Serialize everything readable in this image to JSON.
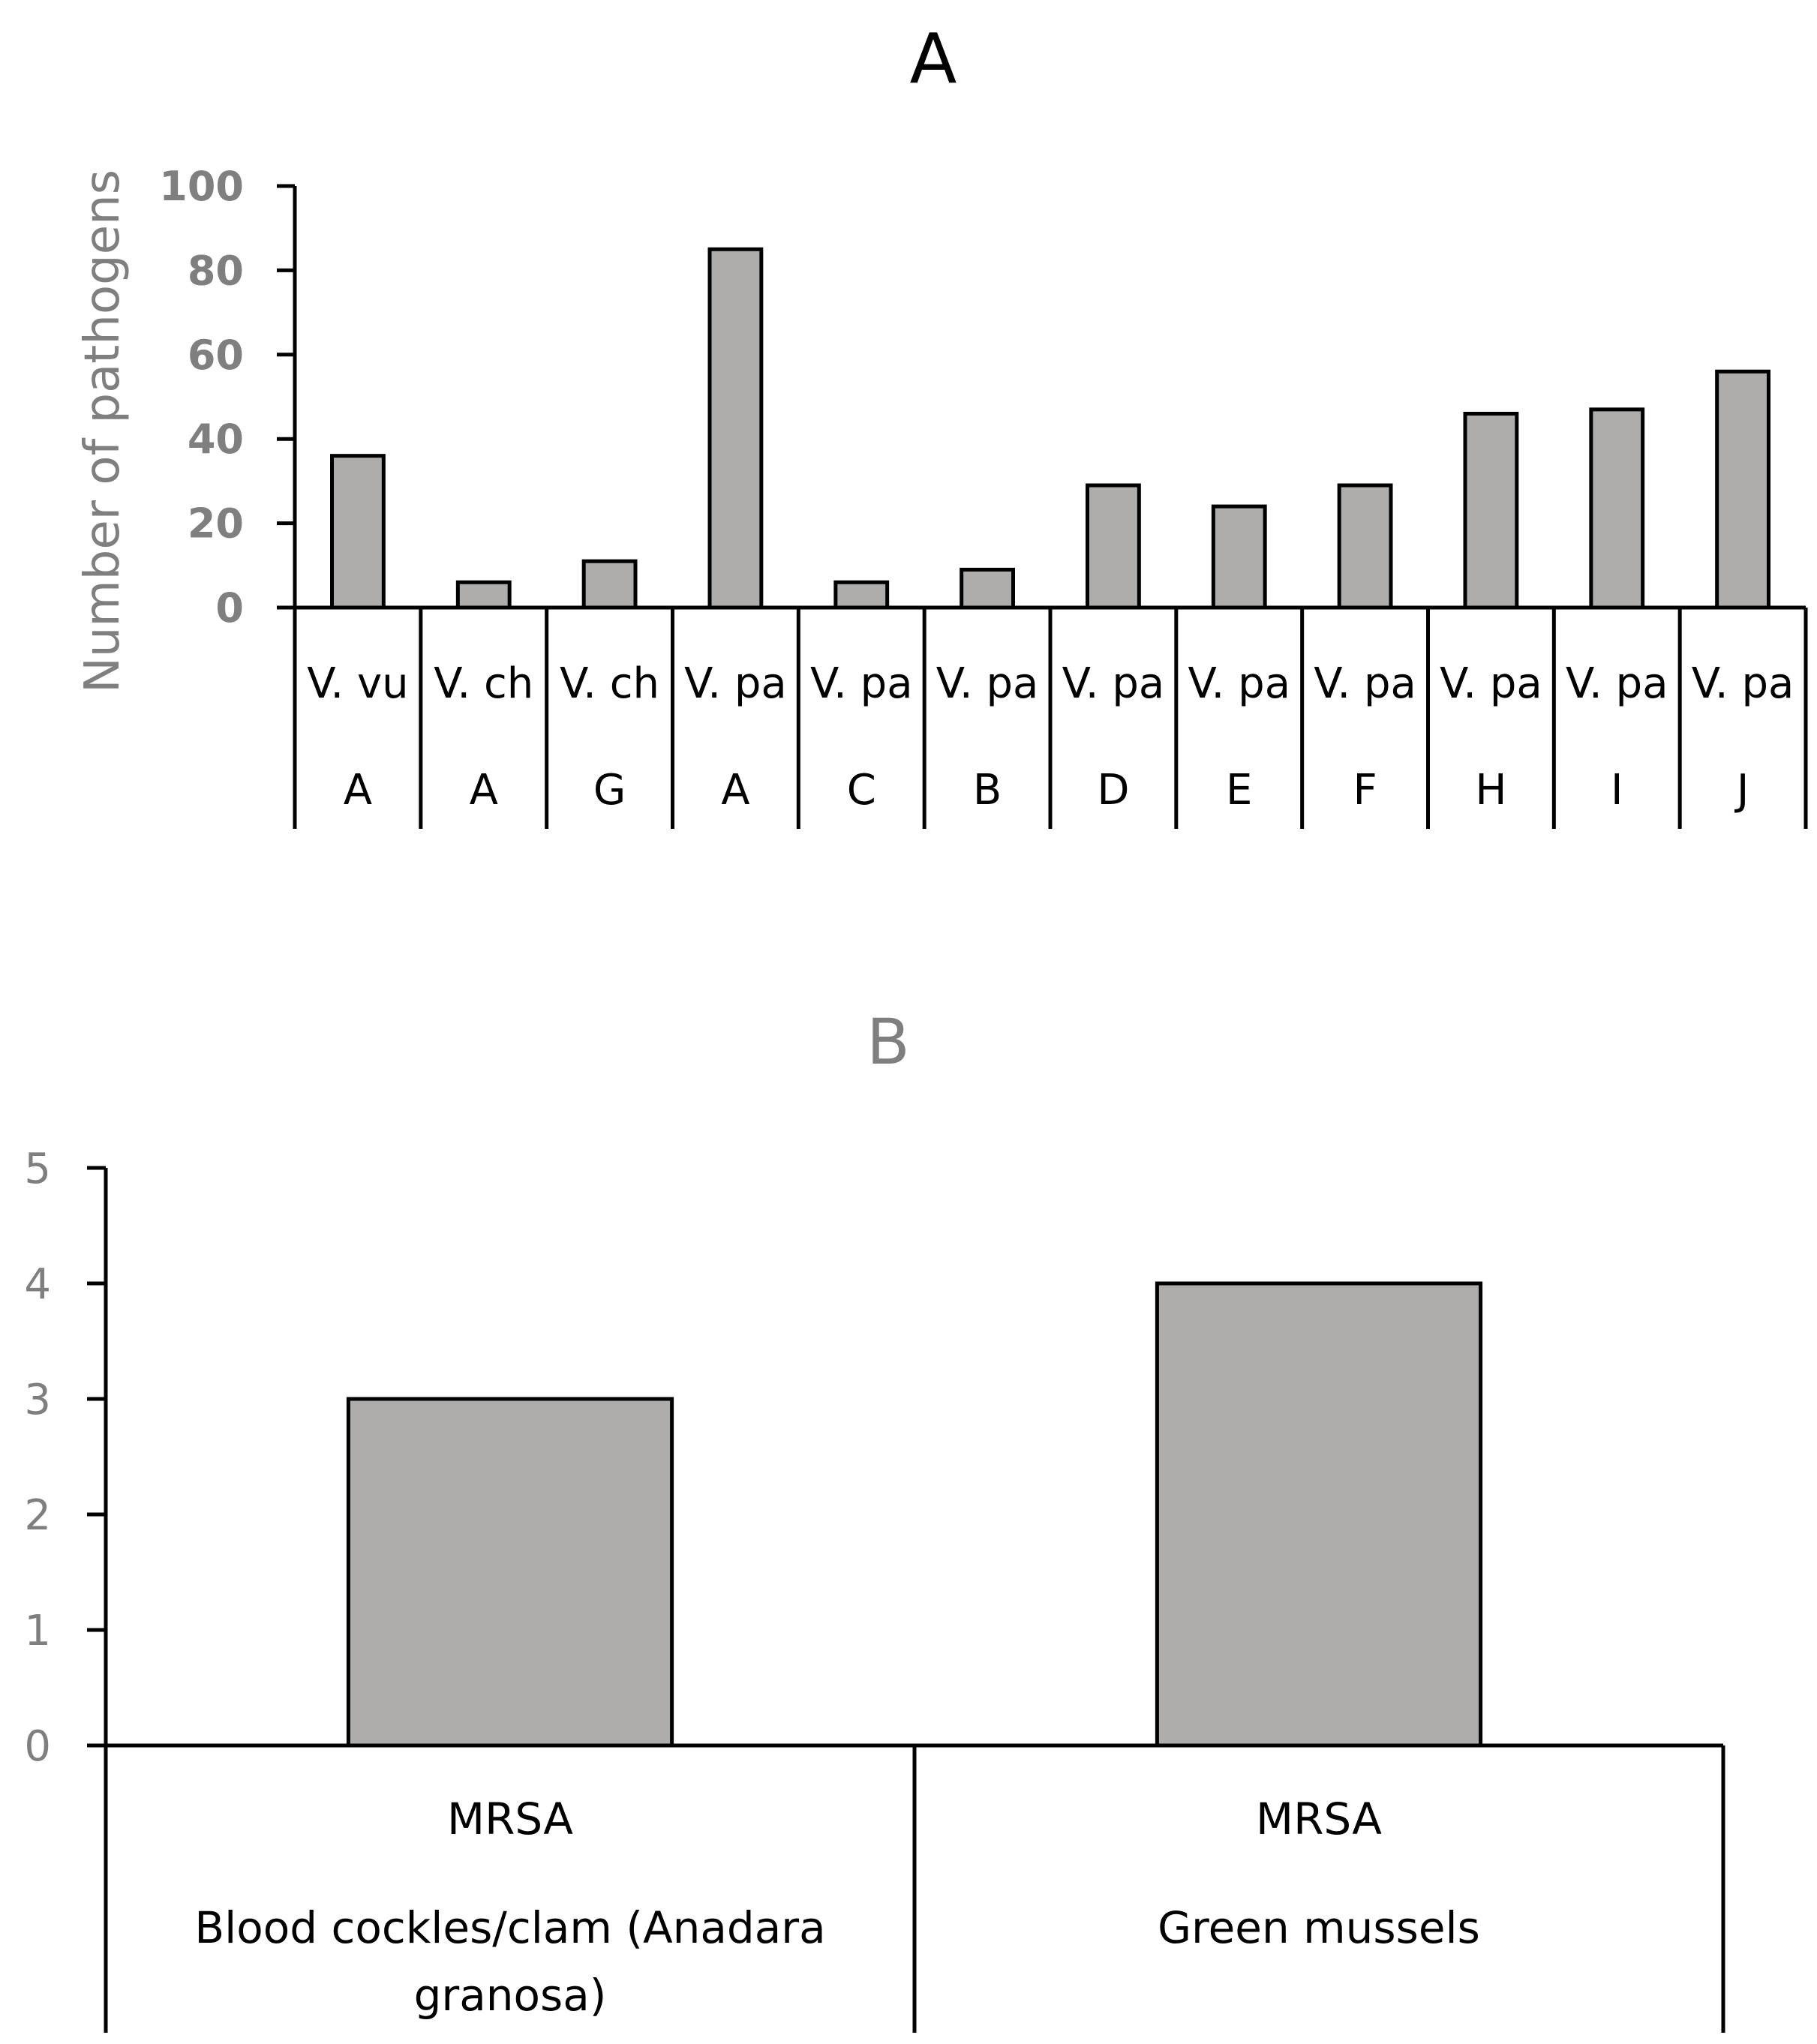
{
  "chart_data": [
    {
      "type": "bar",
      "title": "A",
      "ylabel": "Number of pathogens",
      "xlabel": "",
      "ylim": [
        0,
        100
      ],
      "yticks": [
        "0",
        "20",
        "40",
        "60",
        "80",
        "100"
      ],
      "categories": [
        {
          "pathogen": "V. vu",
          "site": "A"
        },
        {
          "pathogen": "V. ch",
          "site": "A"
        },
        {
          "pathogen": "V. ch",
          "site": "G"
        },
        {
          "pathogen": "V. pa",
          "site": "A"
        },
        {
          "pathogen": "V. pa",
          "site": "C"
        },
        {
          "pathogen": "V. pa",
          "site": "B"
        },
        {
          "pathogen": "V. pa",
          "site": "D"
        },
        {
          "pathogen": "V. pa",
          "site": "E"
        },
        {
          "pathogen": "V. pa",
          "site": "F"
        },
        {
          "pathogen": "V. pa",
          "site": "H"
        },
        {
          "pathogen": "V. pa",
          "site": "I"
        },
        {
          "pathogen": "V. pa",
          "site": "J"
        }
      ],
      "values": [
        36,
        6,
        11,
        85,
        6,
        9,
        29,
        24,
        29,
        46,
        47,
        56
      ],
      "bar_color": "#afadac"
    },
    {
      "type": "bar",
      "title": "B",
      "ylabel": "",
      "xlabel": "",
      "ylim": [
        0,
        5
      ],
      "yticks": [
        "0",
        "1",
        "2",
        "3",
        "4",
        "5"
      ],
      "categories": [
        {
          "pathogen": "MRSA",
          "host": "Blood cockles/clam (Anadara granosa)"
        },
        {
          "pathogen": "MRSA",
          "host": "Green mussels"
        }
      ],
      "values": [
        3,
        4
      ],
      "bar_color": "#afadac"
    }
  ]
}
